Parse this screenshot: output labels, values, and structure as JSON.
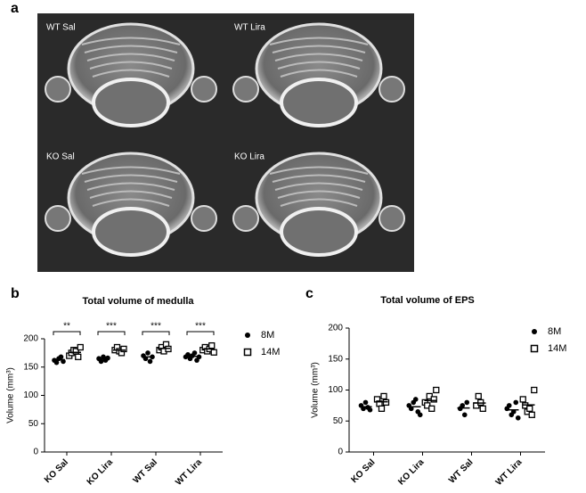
{
  "panel_labels": [
    "a",
    "b",
    "c"
  ],
  "images": [
    "WT Sal",
    "WT Lira",
    "KO Sal",
    "KO Lira"
  ],
  "chart_data": [
    {
      "type": "dot",
      "title": "Total volume of medulla",
      "y_label": "Volume (mm³)",
      "categories": [
        "KO Sal",
        "KO Lira",
        "WT Sal",
        "WT Lira"
      ],
      "ylim": [
        0,
        200
      ],
      "yticks": [
        0,
        50,
        100,
        150,
        200
      ],
      "annotations": [
        "**",
        "***",
        "***",
        "***"
      ],
      "series": [
        {
          "name": "8M",
          "color": "#000000",
          "marker": "circle",
          "values": [
            [
              162,
              158,
              165,
              168,
              160
            ],
            [
              165,
              160,
              168,
              162,
              166
            ],
            [
              170,
              165,
              175,
              160,
              168
            ],
            [
              168,
              172,
              165,
              170,
              175,
              162,
              168
            ]
          ],
          "means": [
            163,
            164,
            168,
            169
          ]
        },
        {
          "name": "14M",
          "color": "#000000",
          "marker": "square",
          "values": [
            [
              170,
              175,
              180,
              178,
              168,
              185
            ],
            [
              180,
              185,
              178,
              175,
              182
            ],
            [
              180,
              185,
              178,
              190,
              182
            ],
            [
              180,
              185,
              178,
              182,
              188,
              176
            ]
          ],
          "means": [
            176,
            180,
            183,
            182
          ]
        }
      ]
    },
    {
      "type": "dot",
      "title": "Total volume of EPS",
      "y_label": "Volume (mm³)",
      "categories": [
        "KO Sal",
        "KO Lira",
        "WT Sal",
        "WT Lira"
      ],
      "ylim": [
        0,
        200
      ],
      "yticks": [
        0,
        50,
        100,
        150,
        200
      ],
      "series": [
        {
          "name": "8M",
          "color": "#000000",
          "marker": "circle",
          "values": [
            [
              75,
              70,
              80,
              72,
              68
            ],
            [
              75,
              70,
              80,
              85,
              65,
              60
            ],
            [
              70,
              75,
              60,
              80
            ],
            [
              70,
              75,
              60,
              65,
              80,
              55
            ]
          ],
          "means": [
            73,
            73,
            71,
            68
          ]
        },
        {
          "name": "14M",
          "color": "#000000",
          "marker": "square",
          "values": [
            [
              85,
              78,
              70,
              90,
              80
            ],
            [
              80,
              75,
              90,
              70,
              85,
              100
            ],
            [
              75,
              90,
              80,
              70
            ],
            [
              85,
              75,
              65,
              70,
              60,
              100
            ]
          ],
          "means": [
            81,
            83,
            79,
            76
          ]
        }
      ]
    }
  ]
}
